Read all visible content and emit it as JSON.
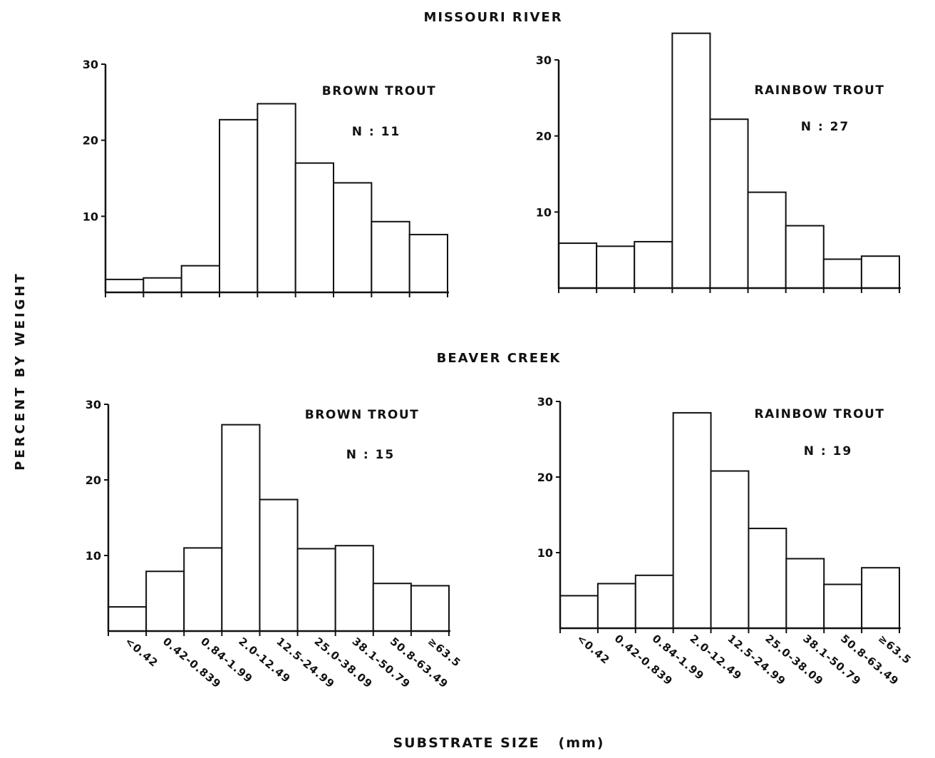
{
  "figure": {
    "ylabel": "PERCENT BY WEIGHT",
    "xlabel": "SUBSTRATE SIZE   (mm)",
    "section_titles": [
      "MISSOURI RIVER",
      "BEAVER CREEK"
    ]
  },
  "chart_data": [
    {
      "type": "bar",
      "section": "MISSOURI RIVER",
      "title": "BROWN TROUT",
      "n_label": "N : 11",
      "categories": [
        "<0.42",
        "0.42-0.839",
        "0.84-1.99",
        "2.0-12.49",
        "12.5-24.99",
        "25.0-38.09",
        "38.1-50.79",
        "50.8-63.49",
        "≥63.5"
      ],
      "values": [
        1.7,
        1.9,
        3.5,
        22.7,
        24.8,
        17.0,
        14.4,
        9.3,
        7.6
      ],
      "yticks": [
        10,
        20,
        30
      ],
      "ylim": [
        0,
        30
      ],
      "show_xtick_labels": false
    },
    {
      "type": "bar",
      "section": "MISSOURI RIVER",
      "title": "RAINBOW TROUT",
      "n_label": "N : 27",
      "categories": [
        "<0.42",
        "0.42-0.839",
        "0.84-1.99",
        "2.0-12.49",
        "12.5-24.99",
        "25.0-38.09",
        "38.1-50.79",
        "50.8-63.49",
        "≥63.5"
      ],
      "values": [
        5.9,
        5.5,
        6.1,
        33.5,
        22.2,
        12.6,
        8.2,
        3.8,
        4.2
      ],
      "yticks": [
        10,
        20,
        30
      ],
      "ylim": [
        0,
        30
      ],
      "show_xtick_labels": false
    },
    {
      "type": "bar",
      "section": "BEAVER CREEK",
      "title": "BROWN TROUT",
      "n_label": "N : 15",
      "categories": [
        "<0.42",
        "0.42-0.839",
        "0.84-1.99",
        "2.0-12.49",
        "12.5-24.99",
        "25.0-38.09",
        "38.1-50.79",
        "50.8-63.49",
        "≥63.5"
      ],
      "values": [
        3.2,
        7.9,
        11.0,
        27.3,
        17.4,
        10.9,
        11.3,
        6.3,
        6.0
      ],
      "yticks": [
        10,
        20,
        30
      ],
      "ylim": [
        0,
        30
      ],
      "show_xtick_labels": true
    },
    {
      "type": "bar",
      "section": "BEAVER CREEK",
      "title": "RAINBOW TROUT",
      "n_label": "N : 19",
      "categories": [
        "<0.42",
        "0.42-0.839",
        "0.84-1.99",
        "2.0-12.49",
        "12.5-24.99",
        "25.0-38.09",
        "38.1-50.79",
        "50.8-63.49",
        "≥63.5"
      ],
      "values": [
        4.3,
        5.9,
        7.0,
        28.5,
        20.8,
        13.2,
        9.2,
        5.8,
        8.0
      ],
      "yticks": [
        10,
        20,
        30
      ],
      "ylim": [
        0,
        30
      ],
      "show_xtick_labels": true
    }
  ]
}
